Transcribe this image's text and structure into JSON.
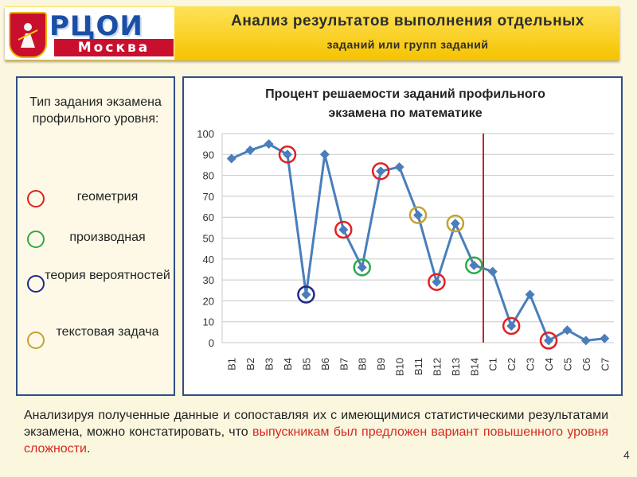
{
  "header": {
    "logo": {
      "top": "РЦОИ",
      "bottom": "Москва"
    },
    "title_line1": "Анализ результатов выполнения отдельных",
    "title_line2": "заданий или групп заданий"
  },
  "legend_panel": {
    "title": "Тип задания экзамена профильного уровня:",
    "items": [
      {
        "label": "геометрия",
        "color": "#e02020"
      },
      {
        "label": "производная",
        "color": "#2eaa4a"
      },
      {
        "label": "теория вероятностей",
        "color": "#1f2a8a"
      },
      {
        "label": "текстовая задача",
        "color": "#c4a233"
      }
    ]
  },
  "chart_data": {
    "type": "line",
    "title": "Процент решаемости заданий профильного экзамена по математике",
    "categories": [
      "B1",
      "B2",
      "B3",
      "B4",
      "B5",
      "B6",
      "B7",
      "B8",
      "B9",
      "B10",
      "B11",
      "B12",
      "B13",
      "B14",
      "C1",
      "C2",
      "C3",
      "C4",
      "C5",
      "C6",
      "C7"
    ],
    "values": [
      88,
      92,
      95,
      90,
      23,
      90,
      54,
      36,
      82,
      84,
      61,
      29,
      57,
      37,
      34,
      8,
      23,
      1,
      6,
      1,
      2
    ],
    "ylim": [
      0,
      100
    ],
    "yticks": [
      0,
      10,
      20,
      30,
      40,
      50,
      60,
      70,
      80,
      90,
      100
    ],
    "grid": true,
    "line_color": "#4a7ebb",
    "divider_after": "B14",
    "divider_color": "#c0262b",
    "highlights": [
      {
        "category": "B4",
        "kind": "геометрия"
      },
      {
        "category": "B7",
        "kind": "геометрия"
      },
      {
        "category": "B9",
        "kind": "геометрия"
      },
      {
        "category": "B12",
        "kind": "геометрия"
      },
      {
        "category": "C2",
        "kind": "геометрия"
      },
      {
        "category": "C4",
        "kind": "геометрия"
      },
      {
        "category": "B8",
        "kind": "производная"
      },
      {
        "category": "B14",
        "kind": "производная"
      },
      {
        "category": "B5",
        "kind": "теория вероятностей"
      },
      {
        "category": "B11",
        "kind": "текстовая задача"
      },
      {
        "category": "B13",
        "kind": "текстовая задача"
      }
    ]
  },
  "footer": {
    "text_normal": "Анализируя полученные данные и сопоставляя их с имеющимися статистическими результатами экзамена, можно констатировать, что",
    "text_red": "выпускникам был предложен вариант повышенного уровня сложности",
    "text_end": ".",
    "page_number": "4"
  }
}
